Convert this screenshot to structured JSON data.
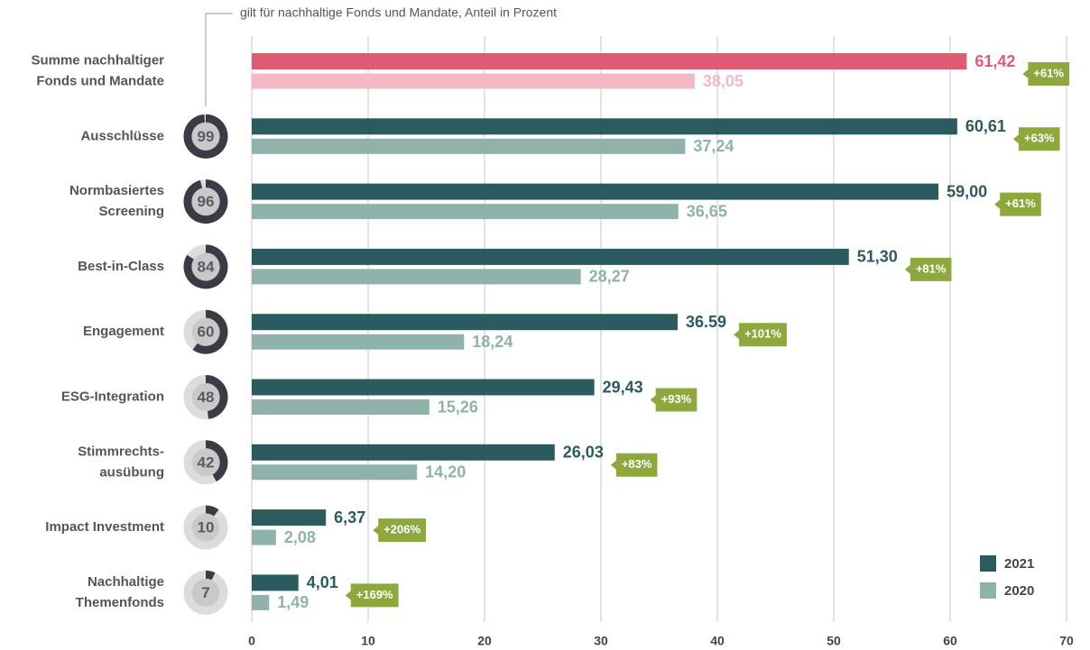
{
  "chart_data": {
    "type": "bar",
    "orientation": "horizontal",
    "subtitle": "gilt für nachhaltige Fonds und Mandate, Anteil in Prozent",
    "categories": [
      [
        "Summe nachhaltiger",
        "Fonds und Mandate"
      ],
      [
        "Ausschlüsse"
      ],
      [
        "Normbasiertes",
        "Screening"
      ],
      [
        "Best-in-Class"
      ],
      [
        "Engagement"
      ],
      [
        "ESG-Integration"
      ],
      [
        "Stimmrechts-",
        "ausübung"
      ],
      [
        "Impact Investment"
      ],
      [
        "Nachhaltige",
        "Themenfonds"
      ]
    ],
    "series": [
      {
        "name": "2021",
        "color": "#2b5b5e",
        "point_colors": [
          "#e05a72",
          null,
          null,
          null,
          null,
          null,
          null,
          null,
          null
        ],
        "values": [
          61.42,
          60.61,
          59.0,
          51.3,
          36.59,
          29.43,
          26.03,
          6.37,
          4.01
        ],
        "value_labels": [
          "61,42",
          "60,61",
          "59,00",
          "51,30",
          "36.59",
          "29,43",
          "26,03",
          "6,37",
          "4,01"
        ]
      },
      {
        "name": "2020",
        "color": "#8fb3aa",
        "point_colors": [
          "#f5b8c6",
          null,
          null,
          null,
          null,
          null,
          null,
          null,
          null
        ],
        "values": [
          38.05,
          37.24,
          36.65,
          28.27,
          18.24,
          15.26,
          14.2,
          2.08,
          1.49
        ],
        "value_labels": [
          "38,05",
          "37,24",
          "36,65",
          "28,27",
          "18,24",
          "15,26",
          "14,20",
          "2,08",
          "1,49"
        ]
      }
    ],
    "change_labels": [
      "+61%",
      "+63%",
      "+61%",
      "+81%",
      "+101%",
      "+93%",
      "+83%",
      "+206%",
      "+169%"
    ],
    "badge_color": "#8fa83e",
    "shares": [
      null,
      99,
      96,
      84,
      60,
      48,
      42,
      10,
      7
    ],
    "xlim": [
      0,
      70
    ],
    "xticks": [
      0,
      10,
      20,
      30,
      40,
      50,
      60,
      70
    ],
    "grid": true,
    "legend": "lower right"
  }
}
